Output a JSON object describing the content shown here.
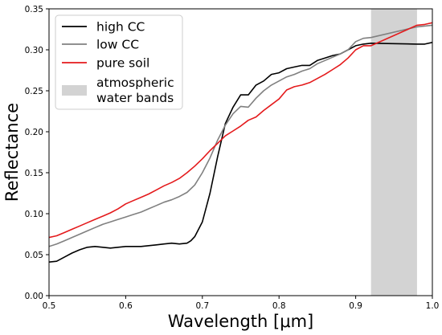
{
  "chart_data": {
    "type": "line",
    "xlabel": "Wavelength [μm]",
    "ylabel": "Reflectance",
    "xlim": [
      0.5,
      1.0
    ],
    "ylim": [
      0.0,
      0.35
    ],
    "xticks": [
      "0.5",
      "0.6",
      "0.7",
      "0.8",
      "0.9",
      "1.0"
    ],
    "yticks": [
      "0.00",
      "0.05",
      "0.10",
      "0.15",
      "0.20",
      "0.25",
      "0.30",
      "0.35"
    ],
    "grid": false,
    "legend_position": "top-left",
    "shaded_band": {
      "label": "atmospheric\nwater bands",
      "x_range": [
        0.92,
        0.98
      ],
      "color": "#d3d3d3"
    },
    "series": [
      {
        "name": "high CC",
        "color": "#000000",
        "x": [
          0.5,
          0.51,
          0.52,
          0.53,
          0.54,
          0.55,
          0.56,
          0.57,
          0.58,
          0.59,
          0.6,
          0.61,
          0.62,
          0.63,
          0.64,
          0.65,
          0.66,
          0.67,
          0.68,
          0.685,
          0.69,
          0.7,
          0.71,
          0.72,
          0.73,
          0.74,
          0.75,
          0.76,
          0.77,
          0.78,
          0.79,
          0.8,
          0.81,
          0.82,
          0.83,
          0.84,
          0.85,
          0.86,
          0.87,
          0.88,
          0.89,
          0.9,
          0.91,
          0.92,
          0.98,
          0.99,
          1.0
        ],
        "y": [
          0.041,
          0.042,
          0.047,
          0.052,
          0.056,
          0.059,
          0.06,
          0.059,
          0.058,
          0.059,
          0.06,
          0.06,
          0.06,
          0.061,
          0.062,
          0.063,
          0.064,
          0.063,
          0.064,
          0.067,
          0.072,
          0.09,
          0.125,
          0.17,
          0.21,
          0.23,
          0.245,
          0.245,
          0.257,
          0.262,
          0.27,
          0.272,
          0.277,
          0.279,
          0.281,
          0.281,
          0.287,
          0.29,
          0.293,
          0.295,
          0.3,
          0.305,
          0.307,
          0.308,
          0.307,
          0.307,
          0.309
        ]
      },
      {
        "name": "low CC",
        "color": "#808080",
        "x": [
          0.5,
          0.51,
          0.52,
          0.53,
          0.54,
          0.55,
          0.56,
          0.57,
          0.58,
          0.59,
          0.6,
          0.61,
          0.62,
          0.63,
          0.64,
          0.65,
          0.66,
          0.67,
          0.68,
          0.69,
          0.7,
          0.71,
          0.72,
          0.73,
          0.74,
          0.75,
          0.76,
          0.77,
          0.78,
          0.79,
          0.8,
          0.81,
          0.82,
          0.83,
          0.84,
          0.85,
          0.86,
          0.87,
          0.88,
          0.89,
          0.9,
          0.91,
          0.92,
          0.98,
          0.99,
          1.0
        ],
        "y": [
          0.06,
          0.063,
          0.067,
          0.071,
          0.075,
          0.079,
          0.083,
          0.087,
          0.09,
          0.093,
          0.096,
          0.099,
          0.102,
          0.106,
          0.11,
          0.114,
          0.117,
          0.121,
          0.126,
          0.135,
          0.15,
          0.168,
          0.19,
          0.208,
          0.222,
          0.231,
          0.23,
          0.241,
          0.25,
          0.257,
          0.262,
          0.267,
          0.27,
          0.274,
          0.277,
          0.283,
          0.287,
          0.291,
          0.295,
          0.3,
          0.31,
          0.314,
          0.315,
          0.328,
          0.329,
          0.33
        ]
      },
      {
        "name": "pure soil",
        "color": "#e41a1c",
        "x": [
          0.5,
          0.51,
          0.52,
          0.53,
          0.54,
          0.55,
          0.56,
          0.57,
          0.58,
          0.59,
          0.6,
          0.61,
          0.62,
          0.63,
          0.64,
          0.65,
          0.66,
          0.67,
          0.68,
          0.69,
          0.7,
          0.71,
          0.72,
          0.73,
          0.74,
          0.75,
          0.76,
          0.77,
          0.78,
          0.79,
          0.8,
          0.81,
          0.82,
          0.83,
          0.84,
          0.85,
          0.86,
          0.87,
          0.88,
          0.89,
          0.9,
          0.91,
          0.92,
          0.98,
          0.99,
          1.0
        ],
        "y": [
          0.071,
          0.073,
          0.077,
          0.081,
          0.085,
          0.089,
          0.093,
          0.097,
          0.101,
          0.106,
          0.112,
          0.116,
          0.12,
          0.124,
          0.129,
          0.134,
          0.138,
          0.143,
          0.15,
          0.158,
          0.167,
          0.177,
          0.186,
          0.195,
          0.201,
          0.207,
          0.214,
          0.218,
          0.226,
          0.233,
          0.24,
          0.251,
          0.255,
          0.257,
          0.26,
          0.265,
          0.27,
          0.276,
          0.282,
          0.29,
          0.3,
          0.305,
          0.305,
          0.33,
          0.331,
          0.333
        ]
      }
    ]
  }
}
